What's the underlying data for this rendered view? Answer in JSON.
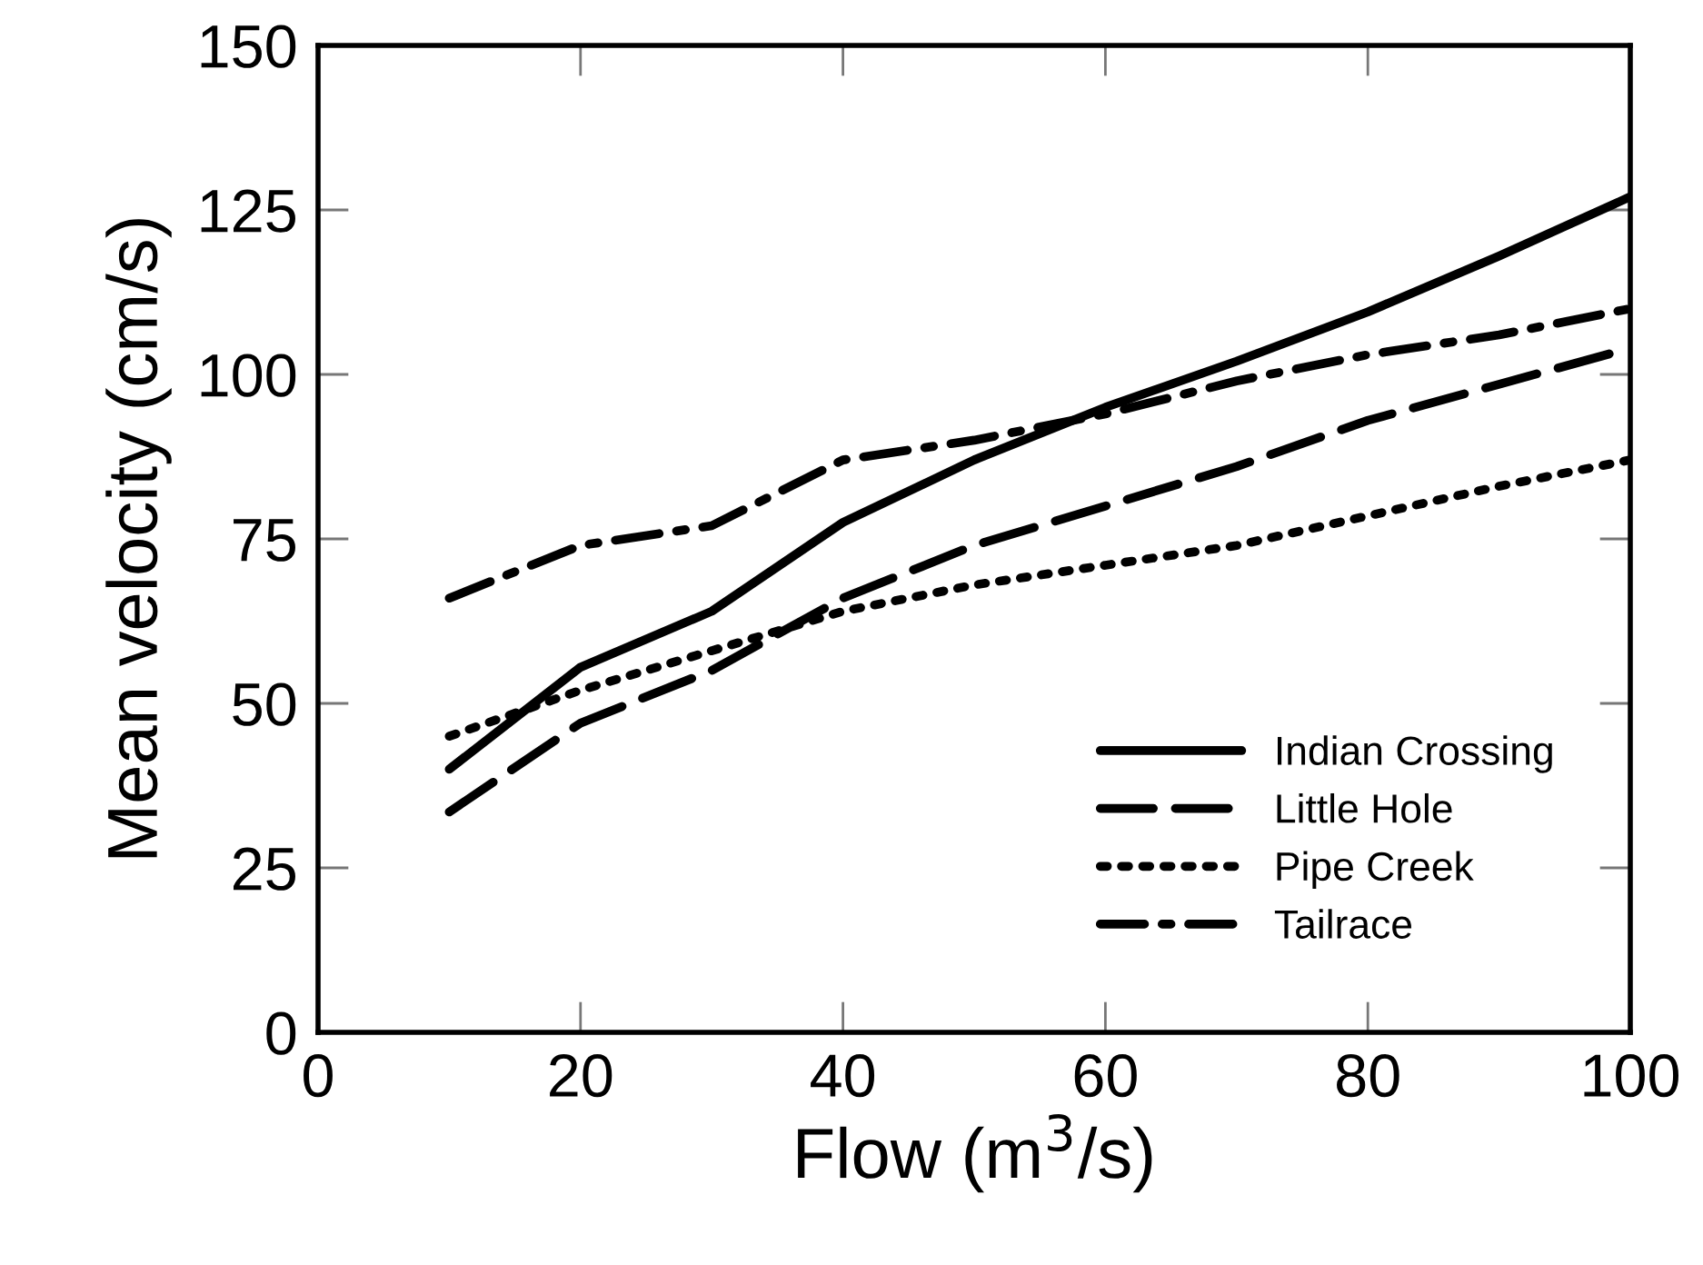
{
  "chart_data": {
    "type": "line",
    "xlabel": "Flow (m$^{3}$/s)",
    "ylabel": "Mean velocity (cm/s)",
    "x": [
      10,
      20,
      30,
      40,
      50,
      60,
      70,
      80,
      90,
      100
    ],
    "series": [
      {
        "name": "Indian Crossing",
        "color": "#000000",
        "line_style": "solid",
        "values": [
          40,
          55.5,
          64,
          77.5,
          87,
          95,
          102,
          109.5,
          118,
          127
        ]
      },
      {
        "name": "Little Hole",
        "color": "#000000",
        "line_style": "dashed",
        "values": [
          33.5,
          47,
          55,
          66,
          74,
          80,
          86,
          93,
          98.5,
          104
        ]
      },
      {
        "name": "Pipe Creek",
        "color": "#000000",
        "line_style": "dotted",
        "values": [
          45,
          52,
          58,
          64,
          68,
          71,
          74,
          78.5,
          83,
          87
        ]
      },
      {
        "name": "Tailrace",
        "color": "#000000",
        "line_style": "dashdot",
        "values": [
          66,
          74,
          77,
          87,
          90,
          94,
          99,
          103,
          106,
          110
        ]
      }
    ],
    "xlim": [
      0,
      100
    ],
    "xticks": [
      0,
      20,
      40,
      60,
      80,
      100
    ],
    "ylim": [
      0,
      150
    ],
    "yticks": [
      0,
      25,
      50,
      75,
      100,
      125,
      150
    ],
    "grid": false,
    "legend": "bottom right",
    "marker": "none"
  }
}
